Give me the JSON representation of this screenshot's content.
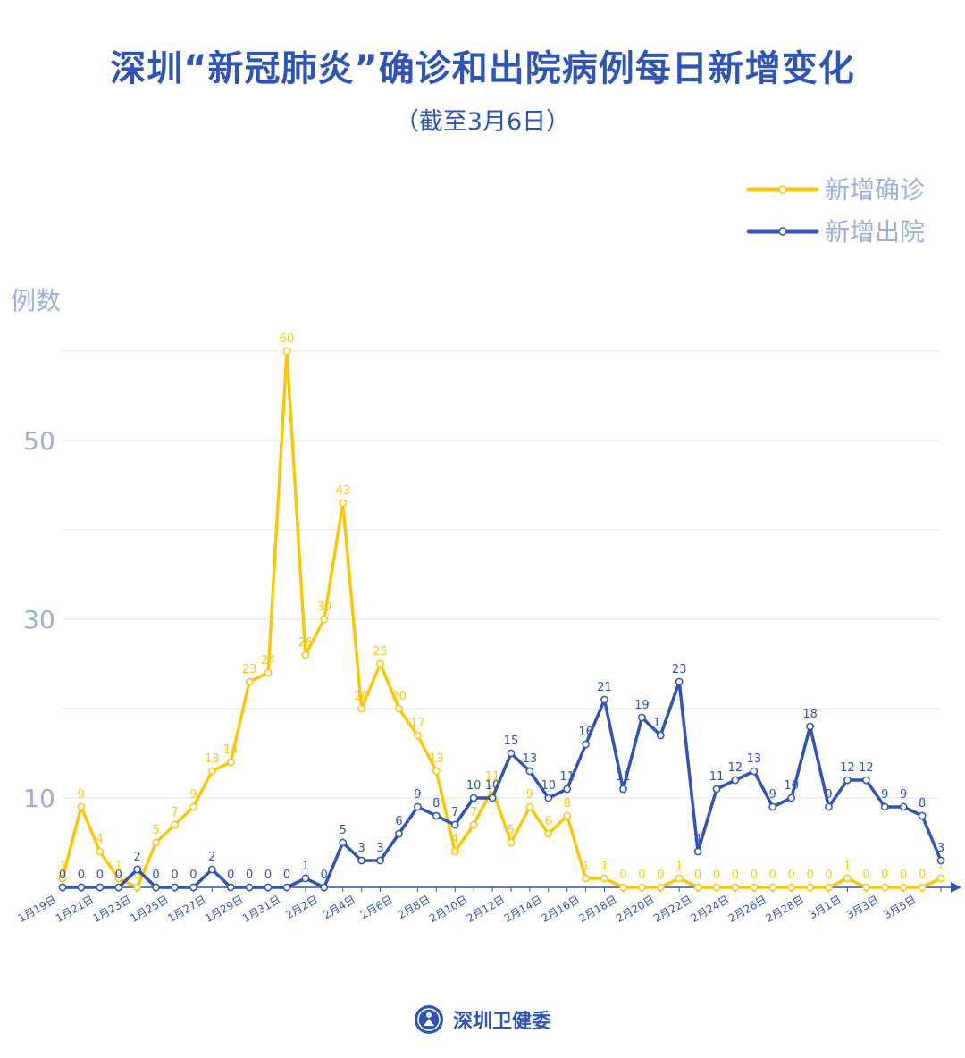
{
  "title": "深圳“新冠肺炎”确诊和出院病例每日新增变化",
  "subtitle": "（截至3月6日）",
  "footer": {
    "source": "深圳卫健委"
  },
  "colors": {
    "confirmed": "#f9c80e",
    "discharged": "#3253b0",
    "axis_text": "#9fb0d8",
    "grid": "#e6e6e6",
    "title": "#2f55b4"
  },
  "chart_data": {
    "type": "line",
    "title": "深圳“新冠肺炎”确诊和出院病例每日新增变化",
    "subtitle": "（截至3月6日）",
    "ylabel": "例数",
    "ylim": [
      0,
      60
    ],
    "yticks": [
      10,
      30,
      50
    ],
    "grid": true,
    "legend_position": "top-right",
    "x": [
      "1月19日",
      "1月20日",
      "1月21日",
      "1月22日",
      "1月23日",
      "1月24日",
      "1月25日",
      "1月26日",
      "1月27日",
      "1月28日",
      "1月29日",
      "1月30日",
      "1月31日",
      "2月1日",
      "2月2日",
      "2月3日",
      "2月4日",
      "2月5日",
      "2月6日",
      "2月7日",
      "2月8日",
      "2月9日",
      "2月10日",
      "2月11日",
      "2月12日",
      "2月13日",
      "2月14日",
      "2月15日",
      "2月16日",
      "2月17日",
      "2月18日",
      "2月19日",
      "2月20日",
      "2月21日",
      "2月22日",
      "2月23日",
      "2月24日",
      "2月25日",
      "2月26日",
      "2月27日",
      "2月28日",
      "2月29日",
      "3月1日",
      "3月2日",
      "3月3日",
      "3月4日",
      "3月5日",
      "3月6日"
    ],
    "xtick_labels": [
      "1月19日",
      "",
      "1月21日",
      "",
      "1月23日",
      "",
      "1月25日",
      "",
      "1月27日",
      "",
      "1月29日",
      "",
      "1月31日",
      "",
      "2月2日",
      "",
      "2月4日",
      "",
      "2月6日",
      "",
      "2月8日",
      "",
      "2月10日",
      "",
      "2月12日",
      "",
      "2月14日",
      "",
      "2月16日",
      "",
      "2月18日",
      "",
      "2月20日",
      "",
      "2月22日",
      "",
      "2月24日",
      "",
      "2月26日",
      "",
      "2月28日",
      "",
      "3月1日",
      "",
      "3月3日",
      "",
      "3月5日",
      ""
    ],
    "series": [
      {
        "name": "新增确诊",
        "color": "#f9c80e",
        "values": [
          1,
          9,
          4,
          1,
          0,
          5,
          7,
          9,
          13,
          14,
          23,
          24,
          60,
          26,
          30,
          43,
          20,
          25,
          20,
          17,
          13,
          4,
          7,
          11,
          5,
          9,
          6,
          8,
          1,
          1,
          0,
          0,
          0,
          1,
          0,
          0,
          0,
          0,
          0,
          0,
          0,
          0,
          1,
          0,
          0,
          0,
          0,
          1
        ]
      },
      {
        "name": "新增出院",
        "color": "#3253b0",
        "values": [
          0,
          0,
          0,
          0,
          2,
          0,
          0,
          0,
          2,
          0,
          0,
          0,
          0,
          1,
          0,
          5,
          3,
          3,
          6,
          9,
          8,
          7,
          10,
          10,
          15,
          13,
          10,
          11,
          16,
          21,
          11,
          19,
          17,
          23,
          4,
          11,
          12,
          13,
          9,
          10,
          18,
          9,
          12,
          12,
          9,
          9,
          8,
          3
        ]
      }
    ]
  }
}
